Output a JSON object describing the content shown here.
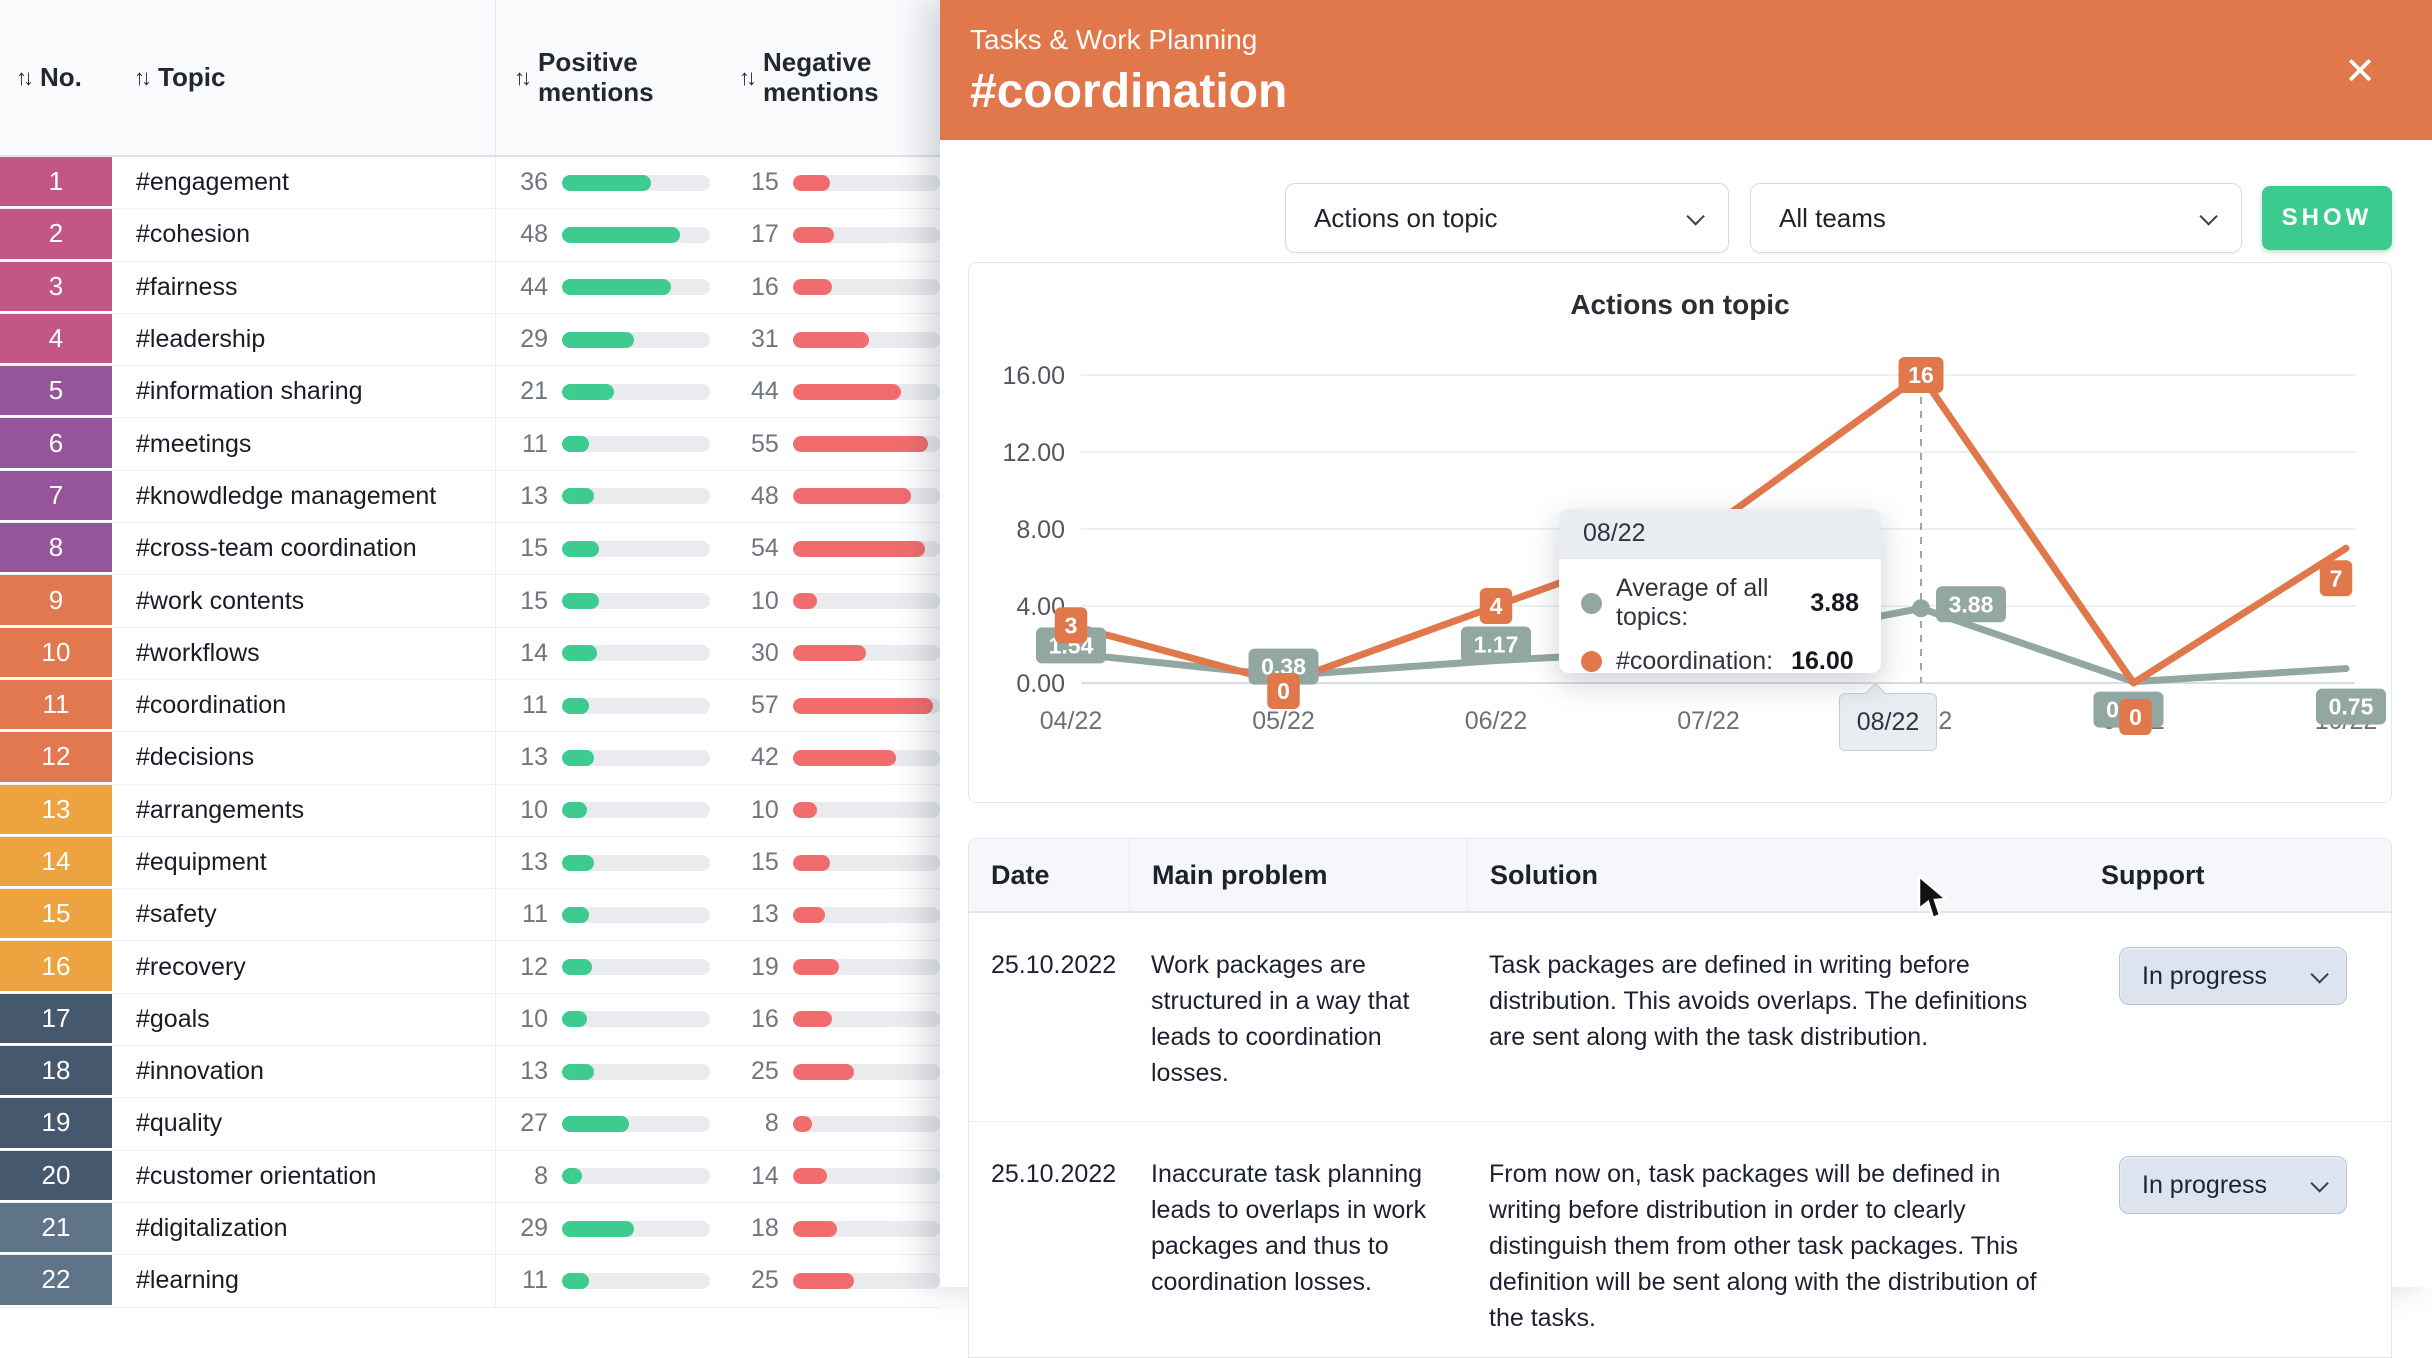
{
  "left_table": {
    "headers": {
      "no": "No.",
      "topic": "Topic",
      "positive": "Positive mentions",
      "negative": "Negative mentions"
    },
    "sort_icon": "↑↓",
    "mentions_scale_max": 60,
    "bar_colors": {
      "positive": "#3dcb8f",
      "negative": "#f16d6d"
    },
    "rows": [
      {
        "no": 1,
        "topic": "#engagement",
        "positive": 36,
        "negative": 15,
        "color": "#c45686"
      },
      {
        "no": 2,
        "topic": "#cohesion",
        "positive": 48,
        "negative": 17,
        "color": "#c45686"
      },
      {
        "no": 3,
        "topic": "#fairness",
        "positive": 44,
        "negative": 16,
        "color": "#c45686"
      },
      {
        "no": 4,
        "topic": "#leadership",
        "positive": 29,
        "negative": 31,
        "color": "#c45686"
      },
      {
        "no": 5,
        "topic": "#information sharing",
        "positive": 21,
        "negative": 44,
        "color": "#96549b"
      },
      {
        "no": 6,
        "topic": "#meetings",
        "positive": 11,
        "negative": 55,
        "color": "#96549b"
      },
      {
        "no": 7,
        "topic": "#knowdledge management",
        "positive": 13,
        "negative": 48,
        "color": "#96549b"
      },
      {
        "no": 8,
        "topic": "#cross-team coordination",
        "positive": 15,
        "negative": 54,
        "color": "#96549b"
      },
      {
        "no": 9,
        "topic": "#work contents",
        "positive": 15,
        "negative": 10,
        "color": "#e2784f"
      },
      {
        "no": 10,
        "topic": "#workflows",
        "positive": 14,
        "negative": 30,
        "color": "#e2784f"
      },
      {
        "no": 11,
        "topic": "#coordination",
        "positive": 11,
        "negative": 57,
        "color": "#e2784f"
      },
      {
        "no": 12,
        "topic": "#decisions",
        "positive": 13,
        "negative": 42,
        "color": "#e2784f"
      },
      {
        "no": 13,
        "topic": "#arrangements",
        "positive": 10,
        "negative": 10,
        "color": "#eda33f"
      },
      {
        "no": 14,
        "topic": "#equipment",
        "positive": 13,
        "negative": 15,
        "color": "#eda33f"
      },
      {
        "no": 15,
        "topic": "#safety",
        "positive": 11,
        "negative": 13,
        "color": "#eda33f"
      },
      {
        "no": 16,
        "topic": "#recovery",
        "positive": 12,
        "negative": 19,
        "color": "#eda33f"
      },
      {
        "no": 17,
        "topic": "#goals",
        "positive": 10,
        "negative": 16,
        "color": "#46586e"
      },
      {
        "no": 18,
        "topic": "#innovation",
        "positive": 13,
        "negative": 25,
        "color": "#46586e"
      },
      {
        "no": 19,
        "topic": "#quality",
        "positive": 27,
        "negative": 8,
        "color": "#46586e"
      },
      {
        "no": 20,
        "topic": "#customer orientation",
        "positive": 8,
        "negative": 14,
        "color": "#46586e"
      },
      {
        "no": 21,
        "topic": "#digitalization",
        "positive": 29,
        "negative": 18,
        "color": "#5f7389"
      },
      {
        "no": 22,
        "topic": "#learning",
        "positive": 11,
        "negative": 25,
        "color": "#5f7389"
      }
    ]
  },
  "modal": {
    "header": {
      "subtitle": "Tasks & Work Planning",
      "title": "#coordination",
      "close_icon": "✕",
      "bg": "#e0784c"
    },
    "controls": {
      "metric_dropdown": "Actions on topic",
      "team_dropdown": "All teams",
      "show_button": "SHOW"
    },
    "chart_data": {
      "type": "line",
      "title": "Actions on topic",
      "x": [
        "04/22",
        "05/22",
        "06/22",
        "07/22",
        "08/22",
        "09/22",
        "10/22"
      ],
      "series": [
        {
          "name": "Average of all topics",
          "color": "#93a7a2",
          "values": [
            1.54,
            0.38,
            1.17,
            1.75,
            3.88,
            0.07,
            0.75
          ],
          "labels": [
            "1.54",
            "0.38",
            "1.17",
            null,
            "3.88",
            "0.07",
            "0.75"
          ]
        },
        {
          "name": "#coordination",
          "color": "#e0784c",
          "values": [
            3,
            0,
            4,
            8,
            16,
            0,
            7
          ],
          "labels": [
            "3",
            "0",
            "4",
            null,
            "16",
            "0",
            "7"
          ]
        }
      ],
      "ylim": [
        0,
        16
      ],
      "yticks": [
        "0.00",
        "4.00",
        "8.00",
        "12.00",
        "16.00"
      ],
      "grid": true,
      "legend_position": "none",
      "highlight_x": "08/22"
    },
    "tooltip": {
      "date": "08/22",
      "rows": [
        {
          "label": "Average of all topics:",
          "value": "3.88",
          "color": "#93a7a2"
        },
        {
          "label": "#coordination:",
          "value": "16.00",
          "color": "#e0784c"
        }
      ]
    },
    "highlighted_tick": "08/22",
    "solutions_table": {
      "headers": [
        "Date",
        "Main problem",
        "Solution",
        "Support"
      ],
      "rows": [
        {
          "date": "25.10.2022",
          "problem": "Work packages are structured in a way that leads to coordination losses.",
          "solution": "Task packages are defined in writing before distribution. This avoids overlaps. The definitions are sent along with the task distribution.",
          "support": "In progress"
        },
        {
          "date": "25.10.2022",
          "problem": "Inaccurate task planning leads to overlaps in work packages and thus to coordination losses.",
          "solution": "From now on, task packages will be defined in writing before distribution in order to clearly distinguish them from other task packages. This definition will be sent along with the distribution of the tasks.",
          "support": "In progress"
        }
      ]
    }
  }
}
